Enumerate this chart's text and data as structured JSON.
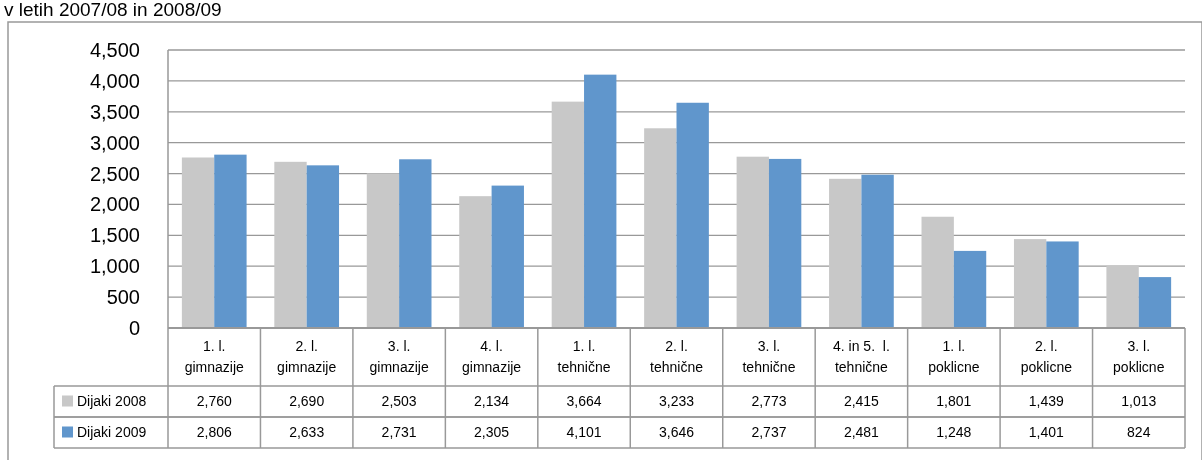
{
  "chart_data": {
    "type": "bar",
    "title": "v letih 2007/08 in 2008/09",
    "categories": [
      "1. l.\ngimnazije",
      "2. l.\ngimnazije",
      "3. l.\ngimnazije",
      "4. l.\ngimnazije",
      "1. l.\ntehnične",
      "2. l.\ntehnične",
      "3. l.\ntehnične",
      "4. in 5.  l.\ntehnične",
      "1. l.\npoklicne",
      "2. l.\npoklicne",
      "3. l.\npoklicne"
    ],
    "series": [
      {
        "name": "Dijaki 2008",
        "color": "#c8c8c8",
        "values": [
          2760,
          2690,
          2503,
          2134,
          3664,
          3233,
          2773,
          2415,
          1801,
          1439,
          1013
        ],
        "value_labels": [
          "2,760",
          "2,690",
          "2,503",
          "2,134",
          "3,664",
          "3,233",
          "2,773",
          "2,415",
          "1,801",
          "1,439",
          "1,013"
        ]
      },
      {
        "name": "Dijaki 2009",
        "color": "#6096cc",
        "values": [
          2806,
          2633,
          2731,
          2305,
          4101,
          3646,
          2737,
          2481,
          1248,
          1401,
          824
        ],
        "value_labels": [
          "2,806",
          "2,633",
          "2,731",
          "2,305",
          "4,101",
          "3,646",
          "2,737",
          "2,481",
          "1,248",
          "1,401",
          "824"
        ]
      }
    ],
    "ylim": [
      0,
      4500
    ],
    "yticks": [
      {
        "value": 0,
        "label": "0"
      },
      {
        "value": 500,
        "label": "500"
      },
      {
        "value": 1000,
        "label": "1,000"
      },
      {
        "value": 1500,
        "label": "1,500"
      },
      {
        "value": 2000,
        "label": "2,000"
      },
      {
        "value": 2500,
        "label": "2,500"
      },
      {
        "value": 3000,
        "label": "3,000"
      },
      {
        "value": 3500,
        "label": "3,500"
      },
      {
        "value": 4000,
        "label": "4,000"
      },
      {
        "value": 4500,
        "label": "4,500"
      }
    ],
    "grid": "y",
    "legend": "bottom"
  }
}
